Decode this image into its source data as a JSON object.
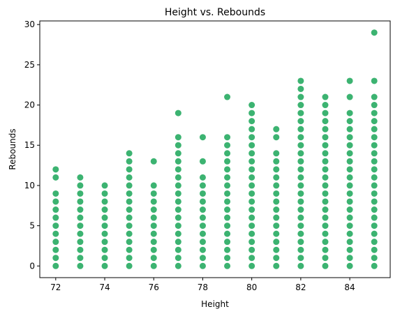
{
  "chart_data": {
    "type": "scatter",
    "title": "Height vs. Rebounds",
    "xlabel": "Height",
    "ylabel": "Rebounds",
    "xlim": [
      71.35,
      85.65
    ],
    "ylim": [
      -1.45,
      30.45
    ],
    "x_ticks": [
      72,
      74,
      76,
      78,
      80,
      82,
      84
    ],
    "y_ticks": [
      0,
      5,
      10,
      15,
      20,
      25,
      30
    ],
    "x_tick_labels": [
      "72",
      "74",
      "76",
      "78",
      "80",
      "82",
      "84"
    ],
    "y_tick_labels": [
      "0",
      "5",
      "10",
      "15",
      "20",
      "25",
      "30"
    ],
    "grid": false,
    "marker_color": "#3cb371",
    "columns": [
      {
        "x": 72,
        "y": [
          0,
          1,
          2,
          3,
          4,
          5,
          6,
          7,
          8,
          9,
          11,
          12
        ]
      },
      {
        "x": 73,
        "y": [
          0,
          1,
          2,
          3,
          4,
          5,
          6,
          7,
          8,
          9,
          10,
          11
        ]
      },
      {
        "x": 74,
        "y": [
          0,
          1,
          2,
          3,
          4,
          5,
          6,
          7,
          8,
          9,
          10
        ]
      },
      {
        "x": 75,
        "y": [
          0,
          1,
          2,
          3,
          4,
          5,
          6,
          7,
          8,
          9,
          10,
          11,
          12,
          13,
          14
        ]
      },
      {
        "x": 76,
        "y": [
          0,
          1,
          2,
          3,
          4,
          5,
          6,
          7,
          8,
          9,
          10,
          13
        ]
      },
      {
        "x": 77,
        "y": [
          0,
          1,
          2,
          3,
          4,
          5,
          6,
          7,
          8,
          9,
          10,
          11,
          12,
          13,
          14,
          15,
          16,
          19
        ]
      },
      {
        "x": 78,
        "y": [
          0,
          1,
          2,
          3,
          4,
          5,
          6,
          7,
          8,
          9,
          10,
          11,
          13,
          16
        ]
      },
      {
        "x": 79,
        "y": [
          0,
          1,
          2,
          3,
          4,
          5,
          6,
          7,
          8,
          9,
          10,
          11,
          12,
          13,
          14,
          15,
          16,
          21
        ]
      },
      {
        "x": 80,
        "y": [
          0,
          1,
          2,
          3,
          4,
          5,
          6,
          7,
          8,
          9,
          10,
          11,
          12,
          13,
          14,
          15,
          16,
          17,
          18,
          19,
          20
        ]
      },
      {
        "x": 81,
        "y": [
          0,
          1,
          2,
          3,
          4,
          5,
          6,
          7,
          8,
          9,
          10,
          11,
          12,
          13,
          14,
          16,
          17
        ]
      },
      {
        "x": 82,
        "y": [
          0,
          1,
          2,
          3,
          4,
          5,
          6,
          7,
          8,
          9,
          10,
          11,
          12,
          13,
          14,
          15,
          16,
          17,
          18,
          19,
          20,
          21,
          22,
          23
        ]
      },
      {
        "x": 83,
        "y": [
          0,
          1,
          2,
          3,
          4,
          5,
          6,
          7,
          8,
          9,
          10,
          11,
          12,
          13,
          14,
          15,
          16,
          17,
          18,
          19,
          20,
          21
        ]
      },
      {
        "x": 84,
        "y": [
          0,
          1,
          2,
          3,
          4,
          5,
          6,
          7,
          8,
          9,
          10,
          11,
          12,
          13,
          14,
          15,
          16,
          17,
          18,
          19,
          21,
          23
        ]
      },
      {
        "x": 85,
        "y": [
          0,
          1,
          2,
          3,
          4,
          5,
          6,
          7,
          8,
          9,
          10,
          11,
          12,
          13,
          14,
          15,
          16,
          17,
          18,
          19,
          20,
          21,
          23,
          29
        ]
      }
    ]
  }
}
